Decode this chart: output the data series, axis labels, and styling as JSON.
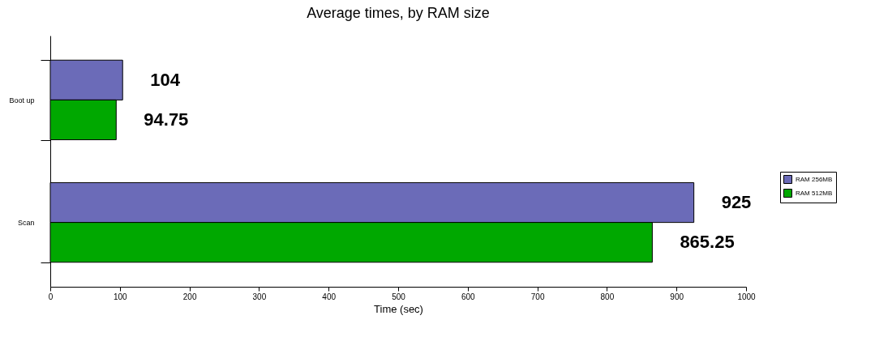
{
  "chart_data": {
    "type": "bar",
    "orientation": "horizontal",
    "title": "Average times, by RAM size",
    "xlabel": "Time (sec)",
    "categories": [
      "Boot up",
      "Scan"
    ],
    "series": [
      {
        "name": "RAM 256MB",
        "color": "#6b6bb8",
        "values": [
          104,
          925
        ]
      },
      {
        "name": "RAM 512MB",
        "color": "#00a800",
        "values": [
          94.75,
          865.25
        ]
      }
    ],
    "xlim": [
      0,
      1000
    ],
    "xticks": [
      0,
      100,
      200,
      300,
      400,
      500,
      600,
      700,
      800,
      900,
      1000
    ],
    "data_labels": true,
    "legend": "right",
    "grid": false
  }
}
